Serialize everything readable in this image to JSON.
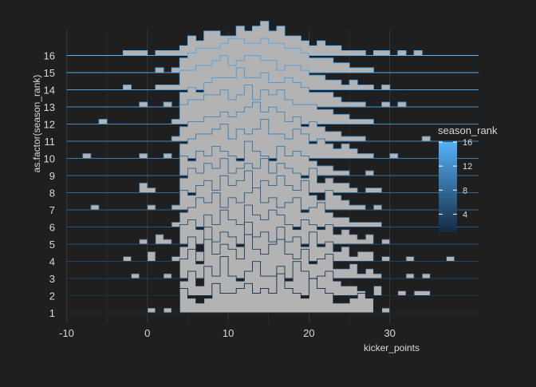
{
  "colors": {
    "background": "#1f1f1f",
    "grid": "#3a3a3a",
    "fill": "#b3b3b3",
    "text": "#d9d9d9",
    "low": "#132b43",
    "high": "#56b1f7"
  },
  "chart_data": {
    "type": "ridgeline-histogram",
    "title": "",
    "xlabel": "kicker_points",
    "ylabel": "as.factor(season_rank)",
    "xlim": [
      -10,
      33
    ],
    "x_ticks": [
      "-10",
      "0",
      "10",
      "20",
      "30"
    ],
    "bin_width": 1,
    "grid": true,
    "legend": {
      "title": "season_rank",
      "position": "right",
      "ticks": [
        "16",
        "12",
        "8",
        "4"
      ],
      "range": [
        1,
        16
      ]
    },
    "categories": [
      "1",
      "2",
      "3",
      "4",
      "5",
      "6",
      "7",
      "8",
      "9",
      "10",
      "11",
      "12",
      "13",
      "14",
      "15",
      "16"
    ],
    "series": [
      {
        "name": "1",
        "bins_start": -9,
        "counts": [
          0,
          0,
          0,
          0,
          0,
          0,
          0,
          0,
          0,
          1,
          0,
          1,
          0,
          5,
          3,
          2,
          3,
          6,
          4,
          4,
          5,
          6,
          4,
          5,
          4,
          8,
          5,
          4,
          3,
          7,
          5,
          4,
          2,
          2,
          3,
          4,
          3,
          0,
          1,
          0,
          0,
          0,
          0,
          0,
          0,
          0,
          0,
          0,
          0,
          0
        ]
      },
      {
        "name": "2",
        "bins_start": -9,
        "counts": [
          0,
          0,
          0,
          0,
          0,
          0,
          0,
          0,
          0,
          0,
          0,
          0,
          0,
          3,
          5,
          2,
          6,
          4,
          8,
          4,
          3,
          5,
          7,
          4,
          4,
          6,
          3,
          7,
          5,
          3,
          4,
          5,
          3,
          2,
          2,
          1,
          0,
          2,
          0,
          0,
          1,
          0,
          1,
          1,
          0,
          0,
          0,
          0,
          0,
          0
        ]
      },
      {
        "name": "3",
        "bins_start": -9,
        "counts": [
          0,
          0,
          0,
          0,
          0,
          0,
          0,
          1,
          0,
          0,
          0,
          1,
          0,
          4,
          6,
          3,
          8,
          5,
          7,
          6,
          4,
          9,
          6,
          5,
          7,
          8,
          5,
          4,
          6,
          3,
          4,
          5,
          2,
          2,
          3,
          1,
          2,
          1,
          0,
          0,
          0,
          1,
          0,
          1,
          0,
          0,
          0,
          0,
          0,
          0
        ]
      },
      {
        "name": "4",
        "bins_start": -9,
        "counts": [
          0,
          0,
          0,
          0,
          0,
          0,
          1,
          0,
          0,
          2,
          0,
          0,
          1,
          3,
          5,
          2,
          7,
          4,
          6,
          5,
          3,
          8,
          5,
          6,
          4,
          7,
          4,
          5,
          3,
          6,
          3,
          4,
          2,
          3,
          1,
          2,
          2,
          0,
          1,
          0,
          0,
          1,
          0,
          0,
          0,
          0,
          1,
          0,
          0,
          0
        ]
      },
      {
        "name": "5",
        "bins_start": -9,
        "counts": [
          0,
          0,
          0,
          0,
          0,
          0,
          0,
          0,
          1,
          0,
          2,
          1,
          0,
          4,
          5,
          3,
          6,
          4,
          7,
          5,
          4,
          8,
          6,
          5,
          7,
          6,
          4,
          3,
          5,
          4,
          3,
          4,
          2,
          3,
          2,
          1,
          2,
          0,
          1,
          0,
          0,
          0,
          0,
          0,
          0,
          0,
          0,
          0,
          0,
          0
        ]
      },
      {
        "name": "6",
        "bins_start": -9,
        "counts": [
          0,
          0,
          0,
          0,
          0,
          0,
          0,
          0,
          0,
          0,
          0,
          0,
          1,
          3,
          4,
          6,
          5,
          7,
          4,
          6,
          5,
          7,
          8,
          5,
          6,
          4,
          5,
          6,
          3,
          4,
          5,
          3,
          2,
          2,
          1,
          1,
          1,
          1,
          0,
          0,
          0,
          0,
          0,
          0,
          0,
          0,
          0,
          0,
          0,
          0
        ]
      },
      {
        "name": "7",
        "bins_start": -9,
        "counts": [
          0,
          0,
          1,
          0,
          0,
          0,
          0,
          0,
          0,
          1,
          0,
          0,
          1,
          4,
          3,
          5,
          6,
          4,
          7,
          5,
          6,
          8,
          4,
          6,
          5,
          7,
          5,
          4,
          6,
          3,
          2,
          4,
          3,
          2,
          1,
          1,
          0,
          1,
          0,
          0,
          0,
          0,
          0,
          0,
          0,
          0,
          0,
          0,
          0,
          0
        ]
      },
      {
        "name": "8",
        "bins_start": -9,
        "counts": [
          0,
          0,
          0,
          0,
          0,
          0,
          0,
          0,
          2,
          1,
          0,
          0,
          0,
          3,
          5,
          4,
          6,
          5,
          7,
          4,
          5,
          6,
          5,
          7,
          4,
          6,
          5,
          4,
          3,
          5,
          2,
          3,
          2,
          2,
          1,
          0,
          1,
          1,
          0,
          0,
          0,
          0,
          0,
          0,
          0,
          0,
          0,
          0,
          0,
          0
        ]
      },
      {
        "name": "9",
        "bins_start": -9,
        "counts": [
          0,
          0,
          0,
          0,
          0,
          0,
          0,
          0,
          0,
          0,
          0,
          0,
          0,
          4,
          3,
          5,
          4,
          6,
          5,
          4,
          3,
          7,
          5,
          4,
          3,
          6,
          4,
          5,
          4,
          3,
          2,
          2,
          1,
          1,
          0,
          0,
          1,
          0,
          0,
          0,
          0,
          0,
          0,
          0,
          0,
          0,
          0,
          0,
          0,
          0
        ]
      },
      {
        "name": "10",
        "bins_start": -9,
        "counts": [
          0,
          1,
          0,
          0,
          0,
          0,
          0,
          0,
          1,
          0,
          0,
          1,
          0,
          3,
          4,
          5,
          5,
          6,
          7,
          4,
          6,
          5,
          6,
          8,
          5,
          5,
          4,
          6,
          5,
          3,
          4,
          3,
          2,
          3,
          2,
          1,
          1,
          0,
          0,
          1,
          0,
          0,
          0,
          0,
          0,
          0,
          0,
          0,
          0,
          0
        ]
      },
      {
        "name": "11",
        "bins_start": -9,
        "counts": [
          0,
          0,
          0,
          0,
          0,
          0,
          0,
          0,
          0,
          0,
          0,
          0,
          1,
          3,
          4,
          4,
          5,
          5,
          6,
          5,
          6,
          7,
          8,
          6,
          7,
          6,
          4,
          5,
          3,
          4,
          3,
          2,
          2,
          1,
          1,
          1,
          0,
          0,
          0,
          0,
          0,
          0,
          0,
          1,
          0,
          0,
          0,
          0,
          0,
          0
        ]
      },
      {
        "name": "12",
        "bins_start": -9,
        "counts": [
          0,
          0,
          0,
          1,
          0,
          0,
          0,
          0,
          0,
          0,
          0,
          0,
          1,
          4,
          5,
          5,
          6,
          6,
          7,
          5,
          6,
          8,
          5,
          7,
          6,
          7,
          5,
          4,
          4,
          4,
          3,
          3,
          2,
          2,
          1,
          1,
          1,
          0,
          0,
          0,
          0,
          0,
          0,
          0,
          0,
          0,
          0,
          0,
          0,
          0
        ]
      },
      {
        "name": "13",
        "bins_start": -9,
        "counts": [
          0,
          0,
          0,
          0,
          0,
          0,
          0,
          0,
          1,
          0,
          0,
          1,
          0,
          3,
          4,
          3,
          5,
          6,
          6,
          6,
          8,
          6,
          6,
          7,
          5,
          5,
          6,
          5,
          4,
          3,
          3,
          3,
          2,
          1,
          1,
          1,
          0,
          0,
          1,
          0,
          1,
          0,
          0,
          0,
          0,
          0,
          0,
          0,
          0,
          0
        ]
      },
      {
        "name": "14",
        "bins_start": -9,
        "counts": [
          0,
          0,
          0,
          0,
          0,
          0,
          1,
          0,
          0,
          0,
          1,
          1,
          1,
          4,
          4,
          5,
          5,
          6,
          7,
          5,
          6,
          7,
          7,
          6,
          6,
          4,
          5,
          5,
          4,
          3,
          3,
          2,
          2,
          1,
          2,
          1,
          1,
          0,
          1,
          0,
          0,
          0,
          0,
          0,
          0,
          0,
          0,
          0,
          0,
          0
        ]
      },
      {
        "name": "15",
        "bins_start": -9,
        "counts": [
          0,
          0,
          0,
          0,
          0,
          0,
          0,
          0,
          0,
          0,
          1,
          0,
          1,
          3,
          4,
          5,
          5,
          5,
          6,
          7,
          7,
          6,
          6,
          7,
          6,
          6,
          5,
          5,
          4,
          3,
          3,
          3,
          2,
          2,
          1,
          1,
          1,
          0,
          0,
          0,
          0,
          0,
          0,
          0,
          0,
          0,
          0,
          0,
          0,
          0
        ]
      },
      {
        "name": "16",
        "bins_start": -9,
        "counts": [
          0,
          0,
          0,
          0,
          0,
          0,
          1,
          1,
          1,
          0,
          1,
          1,
          1,
          2,
          4,
          3,
          5,
          5,
          4,
          4,
          6,
          5,
          6,
          7,
          5,
          6,
          4,
          4,
          3,
          2,
          3,
          2,
          2,
          1,
          1,
          1,
          0,
          1,
          1,
          0,
          1,
          0,
          1,
          0,
          0,
          0,
          0,
          0,
          0,
          0
        ]
      }
    ]
  }
}
